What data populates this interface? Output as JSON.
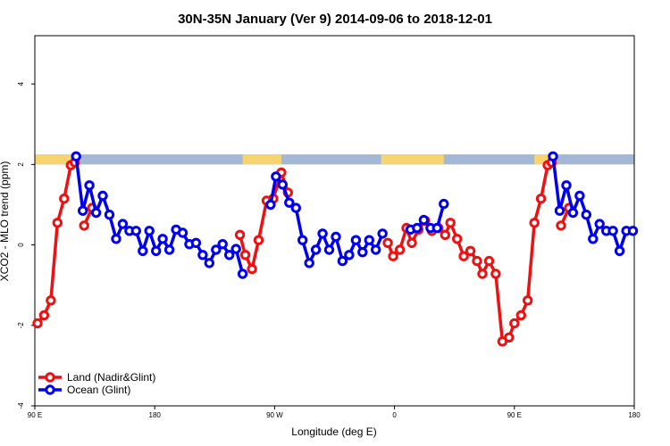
{
  "chart_data": {
    "type": "line",
    "title": "30N-35N January (Ver 9)   2014-09-06 to 2018-12-01",
    "xlabel": "Longitude (deg E)",
    "ylabel": "XCO2 - MLO trend (ppm)",
    "x_ticks": [
      {
        "pos": 90,
        "label": "90 E"
      },
      {
        "pos": 180,
        "label": "180"
      },
      {
        "pos": 270,
        "label": "90 W"
      },
      {
        "pos": 360,
        "label": "0"
      },
      {
        "pos": 450,
        "label": "90 E"
      },
      {
        "pos": 540,
        "label": "180"
      }
    ],
    "y_ticks": [
      {
        "value": -4,
        "label": "-4"
      },
      {
        "value": -2,
        "label": "-2"
      },
      {
        "value": 0,
        "label": "0"
      },
      {
        "value": 2,
        "label": "2"
      },
      {
        "value": 4,
        "label": "4"
      }
    ],
    "xlim": [
      90,
      540
    ],
    "ylim": [
      -4.0,
      5.2
    ],
    "grid": false,
    "legend_position": "bottom-left",
    "land_ocean_band": {
      "y_range": [
        2.0,
        2.25
      ],
      "ocean_color": "#a3b7d6",
      "land_color": "#f7d46d",
      "land_spans": [
        [
          90,
          122
        ],
        [
          246,
          275
        ],
        [
          350,
          397
        ],
        [
          465,
          482
        ]
      ]
    },
    "series": [
      {
        "name": "Land (Nadir&Glint)",
        "color": "#ee1111",
        "segments": [
          [
            [
              92,
              -1.95
            ],
            [
              97,
              -1.75
            ],
            [
              102,
              -1.38
            ],
            [
              107,
              0.55
            ],
            [
              112,
              1.15
            ],
            [
              117,
              1.98
            ],
            [
              120,
              2.05
            ]
          ],
          [
            [
              127,
              0.48
            ],
            [
              133,
              0.92
            ]
          ],
          [
            [
              244,
              0.25
            ],
            [
              248,
              -0.25
            ],
            [
              253,
              -0.6
            ],
            [
              258,
              0.12
            ],
            [
              264,
              1.1
            ],
            [
              269,
              1.15
            ],
            [
              275,
              1.8
            ],
            [
              280,
              1.3
            ]
          ],
          [
            [
              355,
              0.05
            ],
            [
              359,
              -0.28
            ],
            [
              364,
              -0.12
            ],
            [
              369,
              0.42
            ],
            [
              373,
              0.05
            ],
            [
              378,
              0.38
            ],
            [
              383,
              0.6
            ],
            [
              388,
              0.35
            ],
            [
              393,
              0.42
            ],
            [
              398,
              0.25
            ],
            [
              402,
              0.55
            ],
            [
              407,
              0.15
            ],
            [
              412,
              -0.28
            ],
            [
              417,
              -0.15
            ],
            [
              422,
              -0.4
            ],
            [
              426,
              -0.72
            ],
            [
              431,
              -0.4
            ],
            [
              436,
              -0.72
            ],
            [
              441,
              -2.4
            ],
            [
              446,
              -2.3
            ],
            [
              450,
              -1.95
            ],
            [
              455,
              -1.75
            ],
            [
              460,
              -1.38
            ],
            [
              465,
              0.55
            ],
            [
              470,
              1.15
            ],
            [
              475,
              1.98
            ],
            [
              478,
              2.05
            ]
          ],
          [
            [
              485,
              0.48
            ],
            [
              491,
              0.92
            ]
          ]
        ]
      },
      {
        "name": "Ocean (Glint)",
        "color": "#0000ee",
        "segments": [
          [
            [
              121,
              2.2
            ],
            [
              126,
              0.85
            ],
            [
              131,
              1.48
            ],
            [
              136,
              0.8
            ],
            [
              141,
              1.22
            ],
            [
              146,
              0.75
            ],
            [
              151,
              0.15
            ],
            [
              156,
              0.52
            ],
            [
              161,
              0.35
            ],
            [
              166,
              0.35
            ],
            [
              171,
              -0.15
            ],
            [
              176,
              0.35
            ],
            [
              181,
              -0.15
            ],
            [
              186,
              0.15
            ],
            [
              191,
              -0.12
            ],
            [
              196,
              0.38
            ],
            [
              201,
              0.3
            ],
            [
              206,
              0.02
            ],
            [
              211,
              0.05
            ],
            [
              216,
              -0.25
            ],
            [
              221,
              -0.45
            ],
            [
              226,
              -0.12
            ],
            [
              231,
              0.02
            ],
            [
              236,
              -0.25
            ],
            [
              241,
              -0.1
            ],
            [
              246,
              -0.72
            ]
          ],
          [
            [
              267,
              1.0
            ],
            [
              271,
              1.7
            ],
            [
              276,
              1.5
            ],
            [
              281,
              1.05
            ],
            [
              286,
              0.92
            ],
            [
              291,
              0.12
            ],
            [
              296,
              -0.45
            ],
            [
              301,
              -0.12
            ],
            [
              306,
              0.28
            ],
            [
              311,
              -0.12
            ],
            [
              316,
              0.2
            ],
            [
              321,
              -0.4
            ],
            [
              326,
              -0.25
            ],
            [
              331,
              0.12
            ],
            [
              336,
              -0.18
            ],
            [
              341,
              0.12
            ],
            [
              346,
              -0.12
            ],
            [
              351,
              0.28
            ]
          ],
          [
            [
              372,
              0.38
            ],
            [
              377,
              0.42
            ],
            [
              382,
              0.62
            ],
            [
              387,
              0.42
            ],
            [
              392,
              0.42
            ],
            [
              397,
              1.02
            ]
          ],
          [
            [
              479,
              2.2
            ],
            [
              484,
              0.85
            ],
            [
              489,
              1.48
            ],
            [
              494,
              0.8
            ],
            [
              499,
              1.22
            ],
            [
              504,
              0.75
            ],
            [
              509,
              0.15
            ],
            [
              514,
              0.52
            ],
            [
              519,
              0.35
            ],
            [
              524,
              0.35
            ],
            [
              529,
              -0.15
            ],
            [
              534,
              0.35
            ],
            [
              539,
              0.35
            ]
          ]
        ]
      }
    ]
  }
}
